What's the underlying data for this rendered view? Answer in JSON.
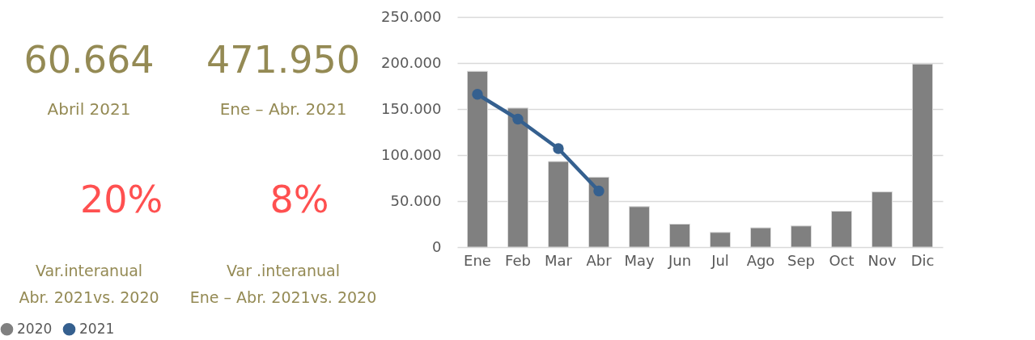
{
  "chart_data": {
    "type": "bar",
    "categories": [
      "Ene",
      "Feb",
      "Mar",
      "Abr",
      "May",
      "Jun",
      "Jul",
      "Ago",
      "Sep",
      "Oct",
      "Nov",
      "Dic"
    ],
    "series": [
      {
        "name": "2020",
        "color": "#808080",
        "values": [
          191000,
          151000,
          93000,
          76000,
          44000,
          25000,
          16000,
          21000,
          23000,
          39000,
          60000,
          199000
        ]
      },
      {
        "name": "2021",
        "type": "line",
        "color": "#35608f",
        "marker": "circle",
        "line_style": "solid",
        "values": [
          166000,
          139000,
          107000,
          61000,
          null,
          null,
          null,
          null,
          null,
          null,
          null,
          null
        ]
      }
    ],
    "ylim": [
      0,
      250000
    ],
    "yticks": [
      {
        "value": 0,
        "label": "0"
      },
      {
        "value": 50000,
        "label": "50.000"
      },
      {
        "value": 100000,
        "label": "100.000"
      },
      {
        "value": 150000,
        "label": "150.000"
      },
      {
        "value": 200000,
        "label": "200.000"
      },
      {
        "value": 250000,
        "label": "250.000"
      }
    ],
    "grid": "y",
    "legend": "bottom",
    "annotations": [
      "60.664",
      "Abril 2021",
      "471.950",
      "Ene – Abr.  2021",
      "20%",
      "8%",
      "Var.interanual",
      "Abr. 2021vs. 2020",
      "Var .interanual",
      "Ene – Abr.  2021vs. 2020"
    ]
  }
}
